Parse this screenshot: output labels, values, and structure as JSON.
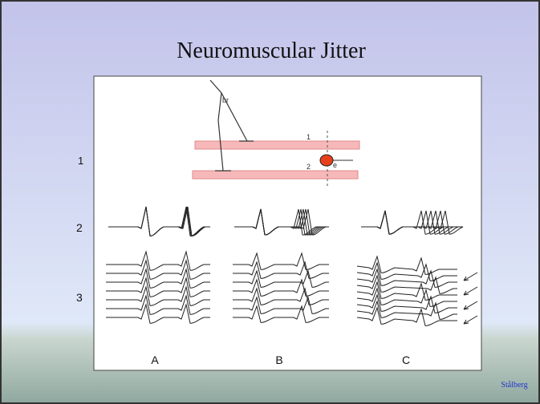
{
  "title": "Neuromuscular Jitter",
  "figure": {
    "nerve_label": "br",
    "fiber_labels": [
      "1",
      "2"
    ],
    "electrode_label": "e",
    "row_labels": [
      "1",
      "2",
      "3"
    ],
    "column_labels": [
      "A",
      "B",
      "C"
    ]
  },
  "credit": "Stålberg"
}
